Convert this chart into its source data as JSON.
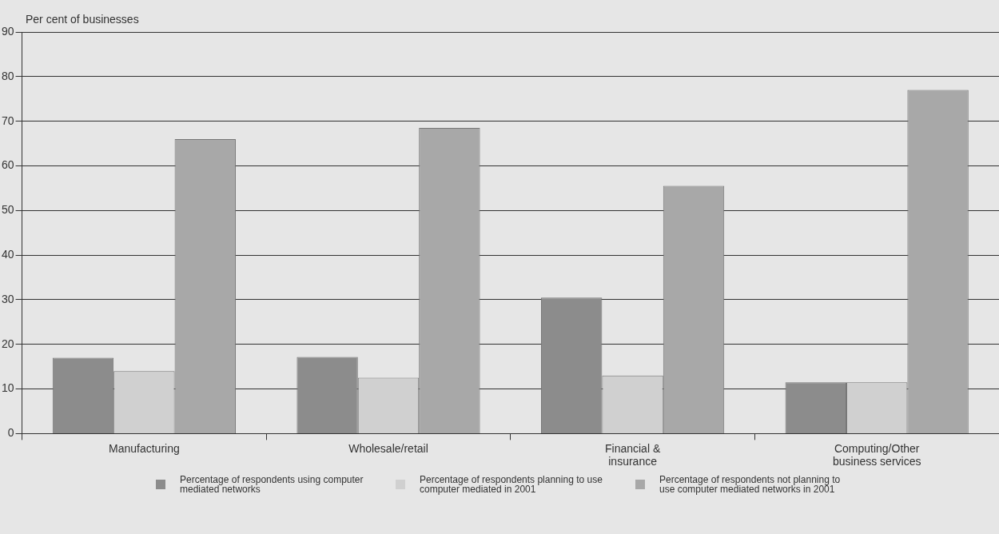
{
  "chart_data": {
    "type": "bar",
    "ylabel": "Per cent of businesses",
    "categories": [
      "Manufacturing",
      "Wholesale/retail",
      "Financial & insurance",
      "Computing/Other business services"
    ],
    "series": [
      {
        "name": "Percentage of respondents using computer mediated networks",
        "color": "#8c8c8c",
        "values": [
          17,
          17.2,
          30.5,
          11.5
        ]
      },
      {
        "name": "Percentage of respondents planning to use computer mediated in 2001",
        "color": "#d0d0d0",
        "values": [
          14,
          12.5,
          13,
          11.5
        ]
      },
      {
        "name": "Percentage of respondents not planning to use computer mediated networks in 2001",
        "color": "#a8a8a8",
        "values": [
          66,
          68.5,
          55.5,
          77
        ]
      }
    ],
    "ylim": [
      0,
      90
    ],
    "yticks": [
      0,
      10,
      20,
      30,
      40,
      50,
      60,
      70,
      80,
      90
    ],
    "grid": "y",
    "legend": "bottom"
  }
}
